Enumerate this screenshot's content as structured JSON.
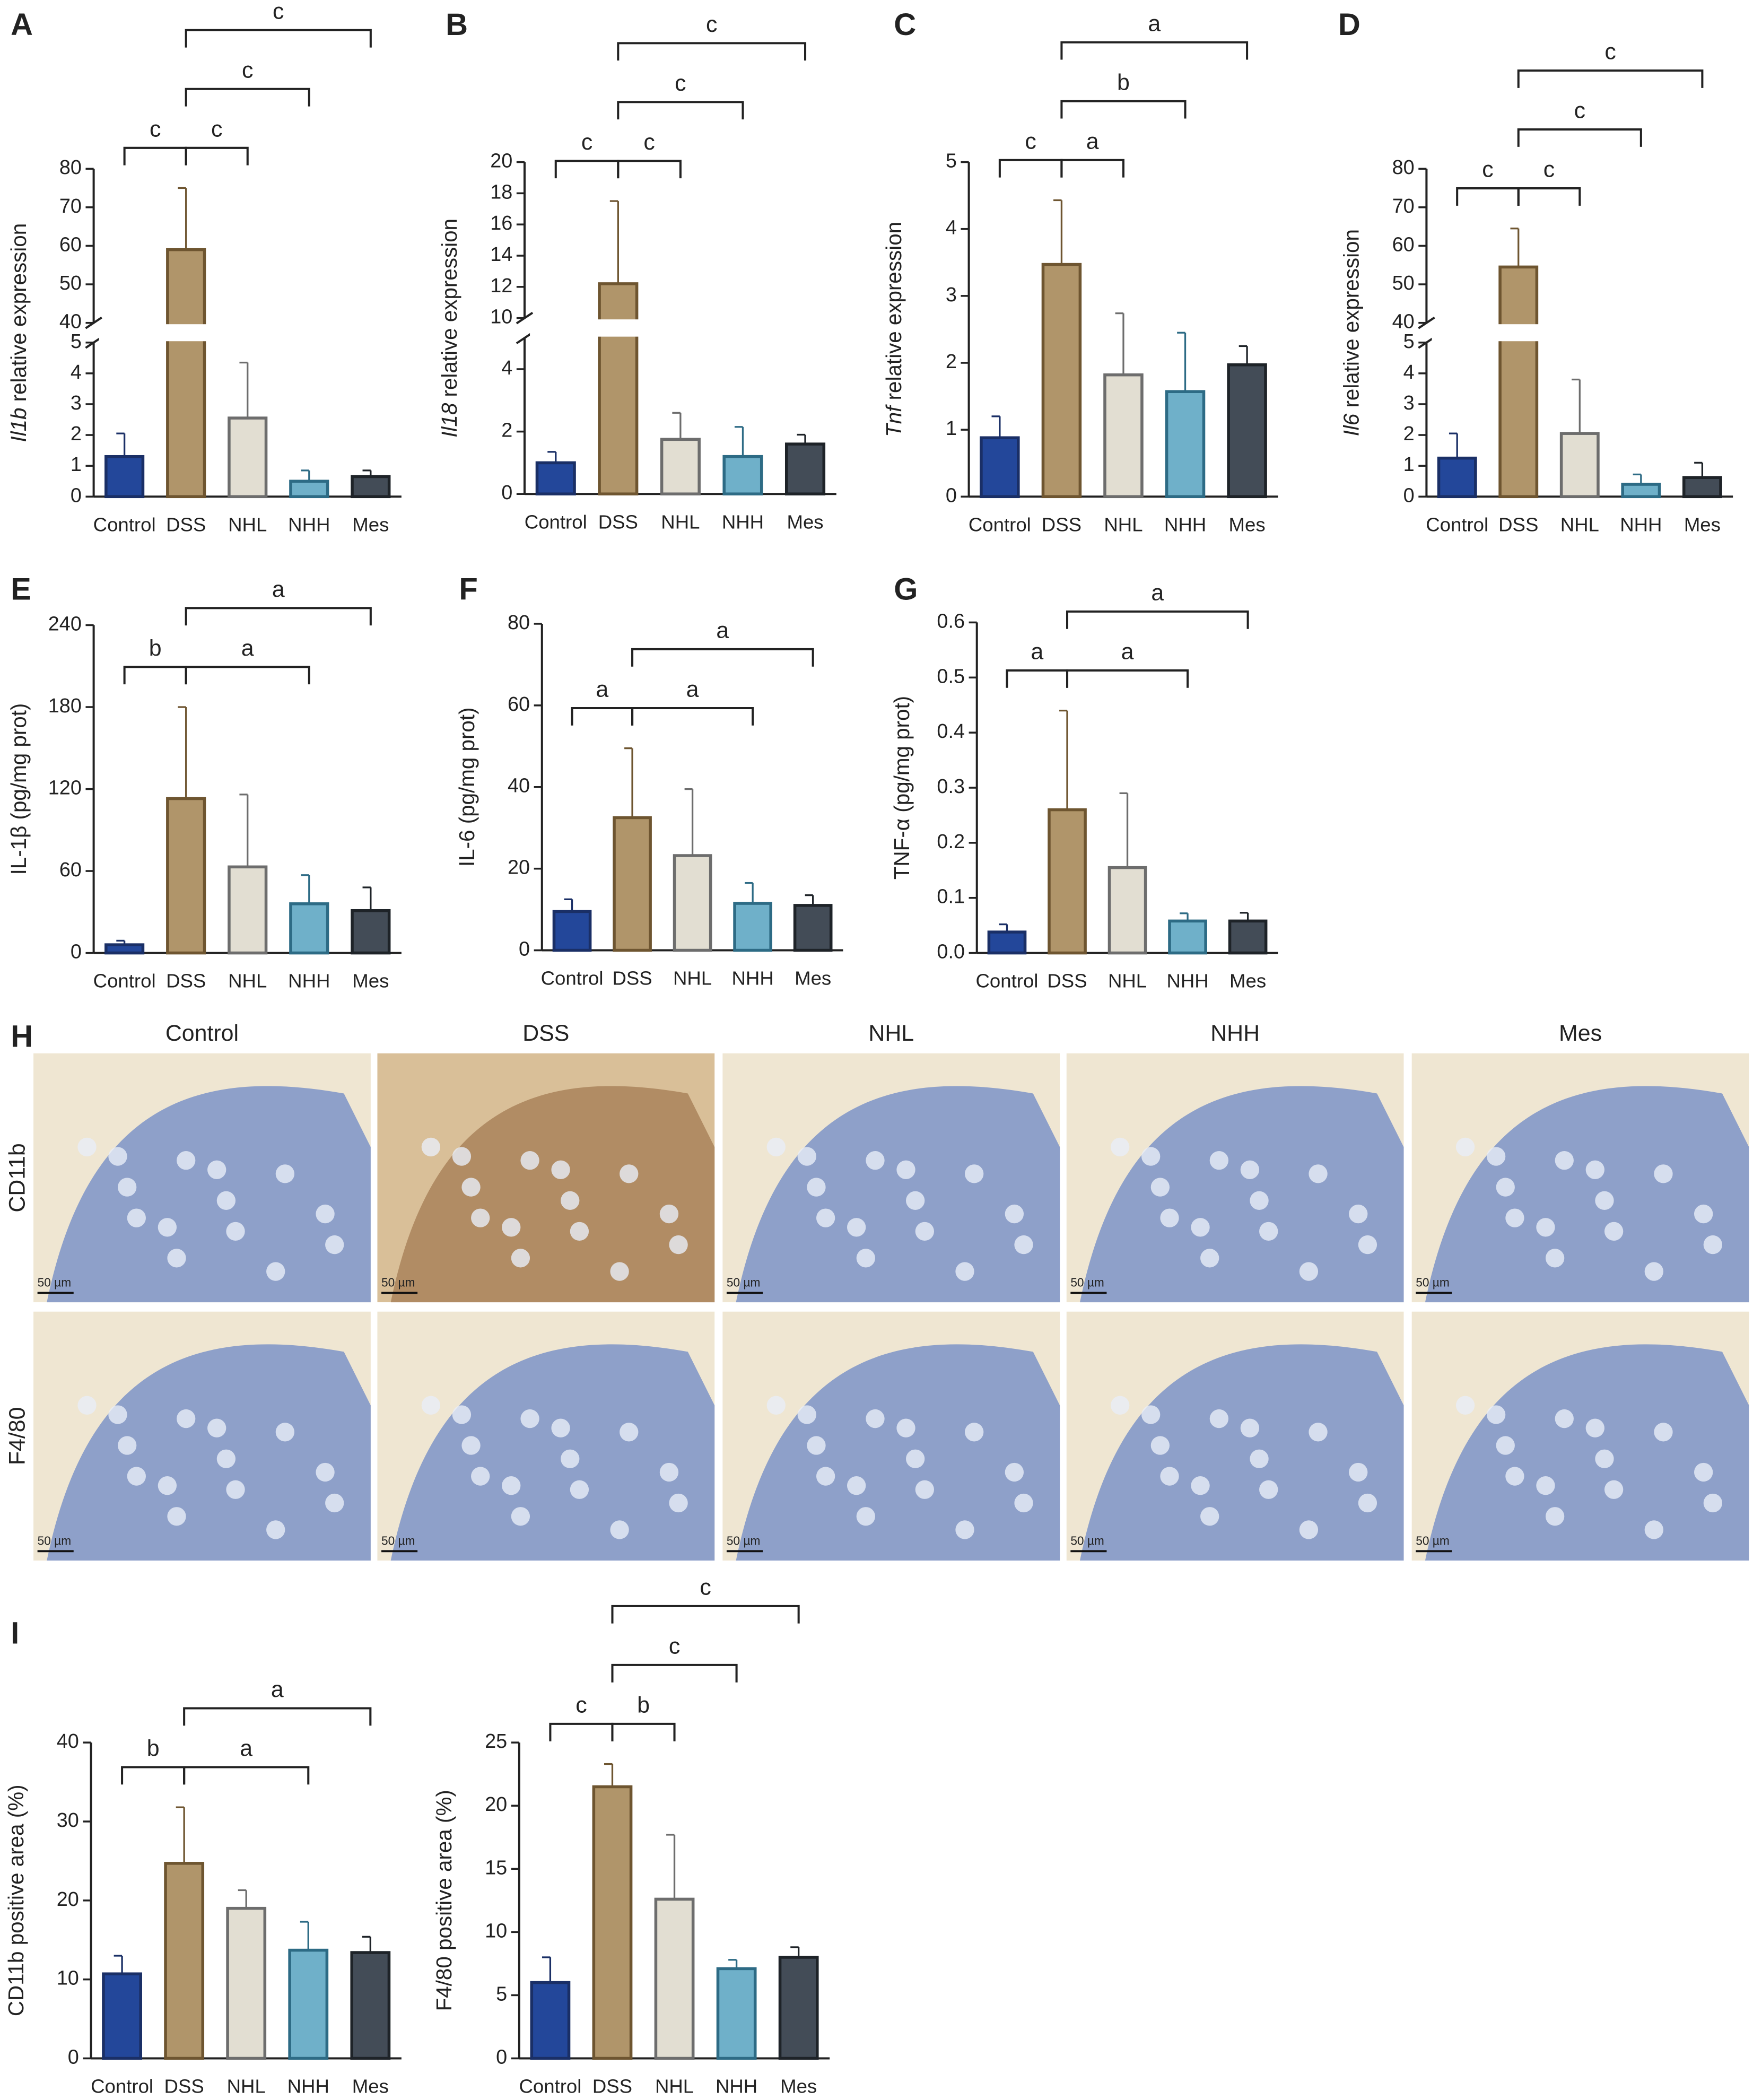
{
  "chart_data": [
    {
      "type": "bar",
      "panel": "A",
      "ylabel": [
        {
          "text": "Il1b",
          "italic": true
        },
        {
          "text": " relative expression"
        }
      ],
      "categories": [
        "Control",
        "DSS",
        "NHL",
        "NHH",
        "Mes"
      ],
      "values": [
        1.3,
        59,
        2.55,
        0.5,
        0.65
      ],
      "errors": [
        0.75,
        16,
        1.8,
        0.35,
        0.2
      ],
      "colors": [
        "#23479a",
        "#b0956a",
        "#e2ded2",
        "#6fb0c9",
        "#434c57"
      ],
      "edge_colors": [
        "#1a2f66",
        "#6e5530",
        "#6d6d6d",
        "#2d6b85",
        "#1e2328"
      ],
      "ylim": [
        0,
        80
      ],
      "axis_break": [
        5,
        40
      ],
      "yticks": [
        0,
        1,
        2,
        3,
        4,
        5,
        40,
        50,
        60,
        70,
        80
      ],
      "comparisons": [
        {
          "groups": [
            "Control",
            "DSS"
          ],
          "label": "c"
        },
        {
          "groups": [
            "DSS",
            "NHL"
          ],
          "label": "c"
        },
        {
          "groups": [
            "DSS",
            "NHH"
          ],
          "label": "c"
        },
        {
          "groups": [
            "DSS",
            "Mes"
          ],
          "label": "c"
        }
      ]
    },
    {
      "type": "bar",
      "panel": "B",
      "ylabel": [
        {
          "text": "Il18",
          "italic": true
        },
        {
          "text": " relative expression"
        }
      ],
      "categories": [
        "Control",
        "DSS",
        "NHL",
        "NHH",
        "Mes"
      ],
      "values": [
        1.0,
        12.2,
        1.75,
        1.2,
        1.6
      ],
      "errors": [
        0.35,
        5.3,
        0.85,
        0.95,
        0.3
      ],
      "colors": [
        "#23479a",
        "#b0956a",
        "#e2ded2",
        "#6fb0c9",
        "#434c57"
      ],
      "edge_colors": [
        "#1a2f66",
        "#6e5530",
        "#6d6d6d",
        "#2d6b85",
        "#1e2328"
      ],
      "ylim": [
        0,
        20
      ],
      "axis_break": [
        5,
        10
      ],
      "yticks": [
        0,
        2,
        4,
        10,
        12,
        14,
        16,
        18,
        20
      ],
      "comparisons": [
        {
          "groups": [
            "Control",
            "DSS"
          ],
          "label": "c"
        },
        {
          "groups": [
            "DSS",
            "NHL"
          ],
          "label": "c"
        },
        {
          "groups": [
            "DSS",
            "NHH"
          ],
          "label": "c"
        },
        {
          "groups": [
            "DSS",
            "Mes"
          ],
          "label": "c"
        }
      ]
    },
    {
      "type": "bar",
      "panel": "C",
      "ylabel": [
        {
          "text": "Tnf",
          "italic": true
        },
        {
          "text": " relative expression"
        }
      ],
      "categories": [
        "Control",
        "DSS",
        "NHL",
        "NHH",
        "Mes"
      ],
      "values": [
        0.88,
        3.47,
        1.82,
        1.57,
        1.97
      ],
      "errors": [
        0.32,
        0.96,
        0.92,
        0.88,
        0.28
      ],
      "colors": [
        "#23479a",
        "#b0956a",
        "#e2ded2",
        "#6fb0c9",
        "#434c57"
      ],
      "edge_colors": [
        "#1a2f66",
        "#6e5530",
        "#6d6d6d",
        "#2d6b85",
        "#1e2328"
      ],
      "ylim": [
        0,
        5
      ],
      "yticks": [
        0,
        1,
        2,
        3,
        4,
        5
      ],
      "comparisons": [
        {
          "groups": [
            "Control",
            "DSS"
          ],
          "label": "c"
        },
        {
          "groups": [
            "DSS",
            "NHL"
          ],
          "label": "a"
        },
        {
          "groups": [
            "DSS",
            "NHH"
          ],
          "label": "b"
        },
        {
          "groups": [
            "DSS",
            "Mes"
          ],
          "label": "a"
        }
      ]
    },
    {
      "type": "bar",
      "panel": "D",
      "ylabel": [
        {
          "text": "Il6",
          "italic": true
        },
        {
          "text": " relative expression"
        }
      ],
      "categories": [
        "Control",
        "DSS",
        "NHL",
        "NHH",
        "Mes"
      ],
      "values": [
        1.25,
        54.5,
        2.05,
        0.4,
        0.62
      ],
      "errors": [
        0.8,
        10,
        1.75,
        0.32,
        0.48
      ],
      "colors": [
        "#23479a",
        "#b0956a",
        "#e2ded2",
        "#6fb0c9",
        "#434c57"
      ],
      "edge_colors": [
        "#1a2f66",
        "#6e5530",
        "#6d6d6d",
        "#2d6b85",
        "#1e2328"
      ],
      "ylim": [
        0,
        80
      ],
      "axis_break": [
        5,
        40
      ],
      "yticks": [
        0,
        1,
        2,
        3,
        4,
        5,
        40,
        50,
        60,
        70,
        80
      ],
      "comparisons": [
        {
          "groups": [
            "Control",
            "DSS"
          ],
          "label": "c"
        },
        {
          "groups": [
            "DSS",
            "NHL"
          ],
          "label": "c"
        },
        {
          "groups": [
            "DSS",
            "NHH"
          ],
          "label": "c"
        },
        {
          "groups": [
            "DSS",
            "Mes"
          ],
          "label": "c"
        }
      ]
    },
    {
      "type": "bar",
      "panel": "E",
      "ylabel": [
        {
          "text": "IL-1β (pg/mg prot)"
        }
      ],
      "categories": [
        "Control",
        "DSS",
        "NHL",
        "NHH",
        "Mes"
      ],
      "values": [
        6,
        113,
        63,
        36,
        31
      ],
      "errors": [
        3,
        67,
        53,
        21,
        17
      ],
      "colors": [
        "#23479a",
        "#b0956a",
        "#e2ded2",
        "#6fb0c9",
        "#434c57"
      ],
      "edge_colors": [
        "#1a2f66",
        "#6e5530",
        "#6d6d6d",
        "#2d6b85",
        "#1e2328"
      ],
      "ylim": [
        0,
        240
      ],
      "yticks": [
        0,
        60,
        120,
        180,
        240
      ],
      "comparisons": [
        {
          "groups": [
            "Control",
            "DSS"
          ],
          "label": "b"
        },
        {
          "groups": [
            "DSS",
            "NHH"
          ],
          "label": "a"
        },
        {
          "groups": [
            "DSS",
            "Mes"
          ],
          "label": "a"
        }
      ]
    },
    {
      "type": "bar",
      "panel": "F",
      "ylabel": [
        {
          "text": "IL-6 (pg/mg prot)"
        }
      ],
      "categories": [
        "Control",
        "DSS",
        "NHL",
        "NHH",
        "Mes"
      ],
      "values": [
        9.5,
        32.5,
        23.2,
        11.5,
        11
      ],
      "errors": [
        3,
        17,
        16.3,
        5,
        2.5
      ],
      "colors": [
        "#23479a",
        "#b0956a",
        "#e2ded2",
        "#6fb0c9",
        "#434c57"
      ],
      "edge_colors": [
        "#1a2f66",
        "#6e5530",
        "#6d6d6d",
        "#2d6b85",
        "#1e2328"
      ],
      "ylim": [
        0,
        80
      ],
      "yticks": [
        0,
        20,
        40,
        60,
        80
      ],
      "comparisons": [
        {
          "groups": [
            "Control",
            "DSS"
          ],
          "label": "a"
        },
        {
          "groups": [
            "DSS",
            "NHH"
          ],
          "label": "a"
        },
        {
          "groups": [
            "DSS",
            "Mes"
          ],
          "label": "a"
        }
      ]
    },
    {
      "type": "bar",
      "panel": "G",
      "ylabel": [
        {
          "text": "TNF-α (pg/mg prot)"
        }
      ],
      "categories": [
        "Control",
        "DSS",
        "NHL",
        "NHH",
        "Mes"
      ],
      "values": [
        0.038,
        0.26,
        0.155,
        0.058,
        0.058
      ],
      "errors": [
        0.014,
        0.18,
        0.135,
        0.014,
        0.015
      ],
      "colors": [
        "#23479a",
        "#b0956a",
        "#e2ded2",
        "#6fb0c9",
        "#434c57"
      ],
      "edge_colors": [
        "#1a2f66",
        "#6e5530",
        "#6d6d6d",
        "#2d6b85",
        "#1e2328"
      ],
      "ylim": [
        0,
        0.6
      ],
      "yticks": [
        {
          "value": 0,
          "label": "0.0"
        },
        0.1,
        0.2,
        0.3,
        0.4,
        0.5,
        0.6
      ],
      "comparisons": [
        {
          "groups": [
            "Control",
            "DSS"
          ],
          "label": "a"
        },
        {
          "groups": [
            "DSS",
            "NHH"
          ],
          "label": "a"
        },
        {
          "groups": [
            "DSS",
            "Mes"
          ],
          "label": "a"
        }
      ]
    },
    {
      "type": "bar",
      "panel": "I",
      "ylabel": [
        {
          "text": "CD11b positive area (%)"
        }
      ],
      "categories": [
        "Control",
        "DSS",
        "NHL",
        "NHH",
        "Mes"
      ],
      "values": [
        10.7,
        24.7,
        19,
        13.7,
        13.4
      ],
      "errors": [
        2.3,
        7.1,
        2.3,
        3.6,
        2
      ],
      "colors": [
        "#23479a",
        "#b0956a",
        "#e2ded2",
        "#6fb0c9",
        "#434c57"
      ],
      "edge_colors": [
        "#1a2f66",
        "#6e5530",
        "#6d6d6d",
        "#2d6b85",
        "#1e2328"
      ],
      "ylim": [
        0,
        40
      ],
      "yticks": [
        0,
        10,
        20,
        30,
        40
      ],
      "comparisons": [
        {
          "groups": [
            "Control",
            "DSS"
          ],
          "label": "b"
        },
        {
          "groups": [
            "DSS",
            "NHH"
          ],
          "label": "a"
        },
        {
          "groups": [
            "DSS",
            "Mes"
          ],
          "label": "a"
        }
      ]
    },
    {
      "type": "bar",
      "ylabel": [
        {
          "text": "F4/80 positive area (%)"
        }
      ],
      "categories": [
        "Control",
        "DSS",
        "NHL",
        "NHH",
        "Mes"
      ],
      "values": [
        6,
        21.5,
        12.6,
        7.1,
        8
      ],
      "errors": [
        2,
        1.8,
        5.1,
        0.7,
        0.8
      ],
      "colors": [
        "#23479a",
        "#b0956a",
        "#e2ded2",
        "#6fb0c9",
        "#434c57"
      ],
      "edge_colors": [
        "#1a2f66",
        "#6e5530",
        "#6d6d6d",
        "#2d6b85",
        "#1e2328"
      ],
      "ylim": [
        0,
        25
      ],
      "yticks": [
        0,
        5,
        10,
        15,
        20,
        25
      ],
      "comparisons": [
        {
          "groups": [
            "Control",
            "DSS"
          ],
          "label": "c"
        },
        {
          "groups": [
            "DSS",
            "NHL"
          ],
          "label": "b"
        },
        {
          "groups": [
            "DSS",
            "NHH"
          ],
          "label": "c"
        },
        {
          "groups": [
            "DSS",
            "Mes"
          ],
          "label": "c"
        }
      ]
    }
  ],
  "image_panel": {
    "label": "H",
    "columns": [
      "Control",
      "DSS",
      "NHL",
      "NHH",
      "Mes"
    ],
    "rows": [
      "CD11b",
      "F4/80"
    ],
    "scale_bar": "50 µm"
  }
}
